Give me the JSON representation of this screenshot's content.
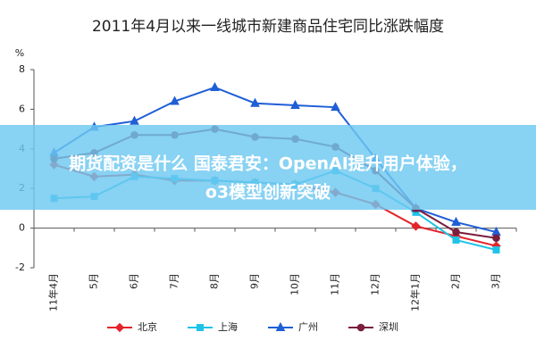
{
  "chart_data": {
    "type": "line",
    "title": "2011年4月以来一线城市新建商品住宅同比涨跌幅度",
    "y_label": "%",
    "categories": [
      "11年4月",
      "5月",
      "6月",
      "7月",
      "8月",
      "9月",
      "10月",
      "11月",
      "12月",
      "12年1月",
      "2月",
      "3月"
    ],
    "series": [
      {
        "name": "北京",
        "color": "#e3242b",
        "marker": "diamond",
        "values": [
          3.2,
          2.6,
          2.7,
          2.4,
          2.4,
          2.3,
          2.2,
          1.8,
          1.2,
          0.1,
          -0.4,
          -0.9
        ]
      },
      {
        "name": "上海",
        "color": "#1fc3e8",
        "marker": "square",
        "values": [
          1.5,
          1.6,
          2.6,
          2.5,
          2.4,
          2.3,
          2.2,
          2.9,
          2.0,
          0.8,
          -0.6,
          -1.1
        ]
      },
      {
        "name": "广州",
        "color": "#1f5fd6",
        "marker": "triangle",
        "values": [
          3.8,
          5.1,
          5.4,
          6.4,
          7.1,
          6.3,
          6.2,
          6.1,
          3.5,
          1.0,
          0.3,
          -0.2
        ]
      },
      {
        "name": "深圳",
        "color": "#7a1f3d",
        "marker": "circle",
        "values": [
          3.5,
          3.8,
          4.7,
          4.7,
          5.0,
          4.6,
          4.5,
          4.1,
          2.9,
          1.0,
          -0.2,
          -0.5
        ]
      }
    ],
    "ylim": [
      -2,
      8
    ],
    "yticks": [
      -2,
      0,
      2,
      4,
      6,
      8
    ],
    "legend": "bottom"
  },
  "banner": {
    "lines": [
      "期货配资是什么 国泰君安：OpenAI提升用户体验，",
      "o3模型创新突破"
    ]
  }
}
